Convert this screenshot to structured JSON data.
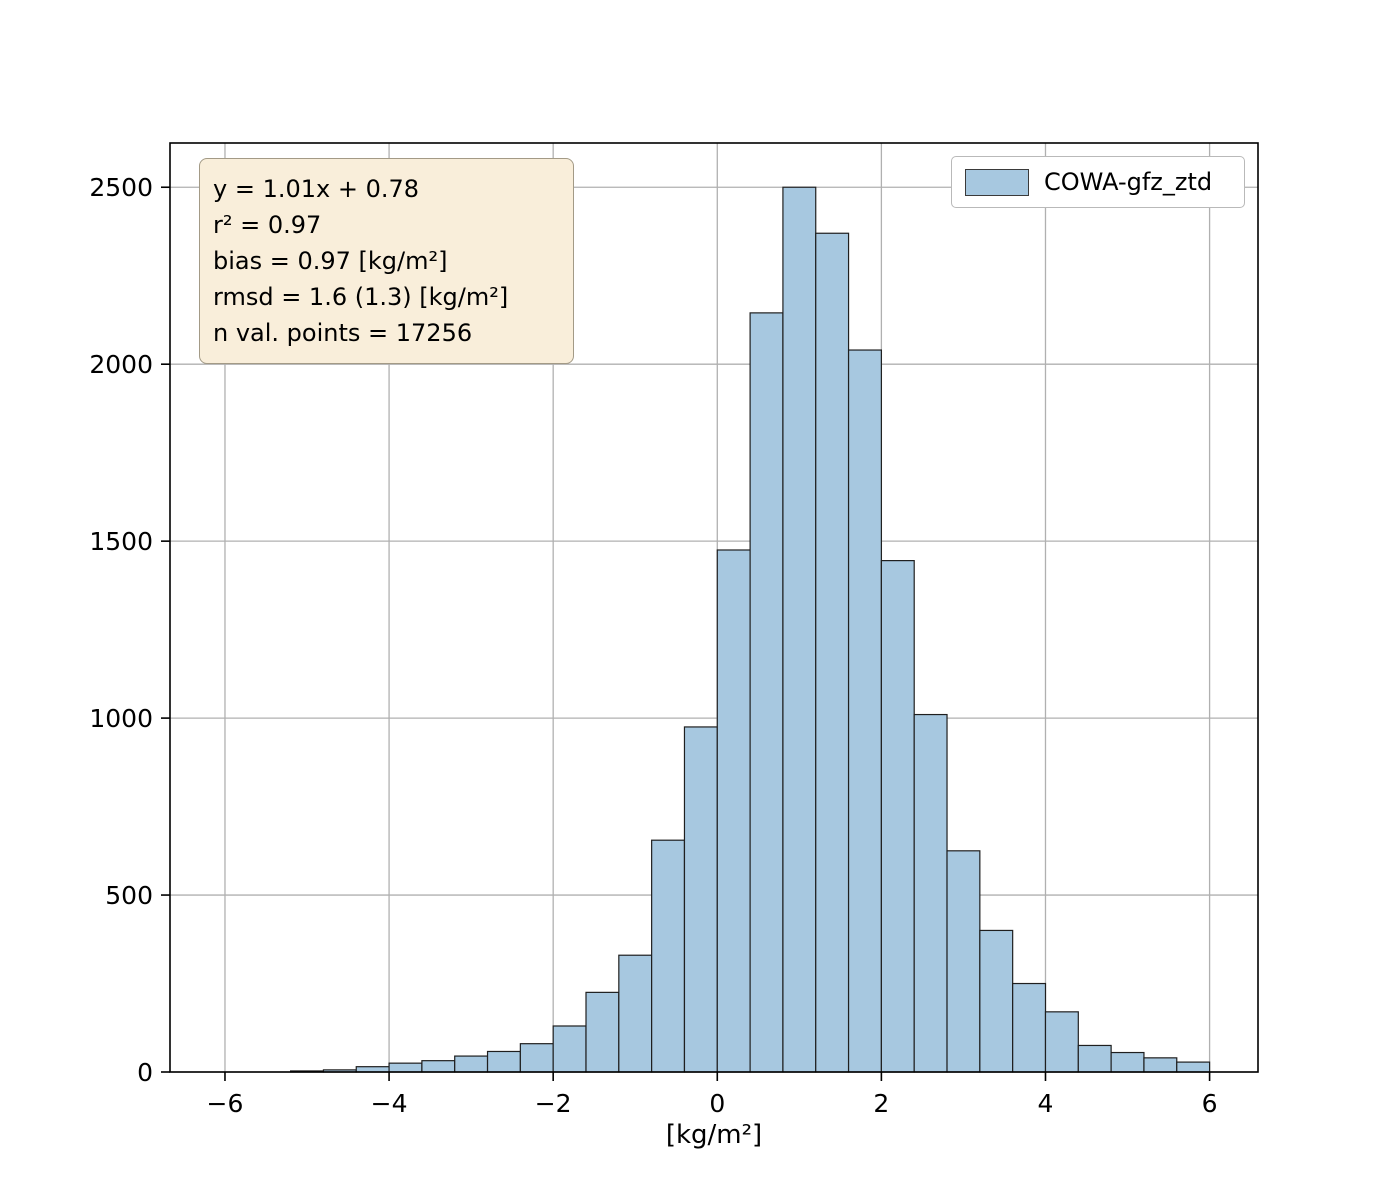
{
  "chart_data": {
    "type": "bar",
    "subtype": "histogram",
    "title": "",
    "xlabel": "[kg/m²]",
    "ylabel": "",
    "xlim": [
      -6.67,
      6.59
    ],
    "ylim": [
      0,
      2625
    ],
    "x_ticks": [
      -6,
      -4,
      -2,
      0,
      2,
      4,
      6
    ],
    "y_ticks": [
      0,
      500,
      1000,
      1500,
      2000,
      2500
    ],
    "grid": true,
    "bar_color": "#a7c8e0",
    "bar_edge_color": "#1f1f1f",
    "grid_color": "#b0b0b0",
    "bin_start": -5.2,
    "bin_width": 0.4,
    "counts": [
      3,
      6,
      15,
      25,
      32,
      45,
      58,
      80,
      130,
      225,
      330,
      655,
      975,
      1475,
      2145,
      2500,
      2370,
      2040,
      1445,
      1010,
      625,
      400,
      250,
      170,
      75,
      55,
      40,
      28
    ],
    "legend": {
      "position": "upper right",
      "label": "COWA-gfz_ztd"
    }
  },
  "stats_box": {
    "lines": [
      "y = 1.01x + 0.78",
      "r² = 0.97",
      "bias = 0.97 [kg/m²]",
      "rmsd = 1.6 (1.3) [kg/m²]",
      "n val. points = 17256"
    ]
  }
}
